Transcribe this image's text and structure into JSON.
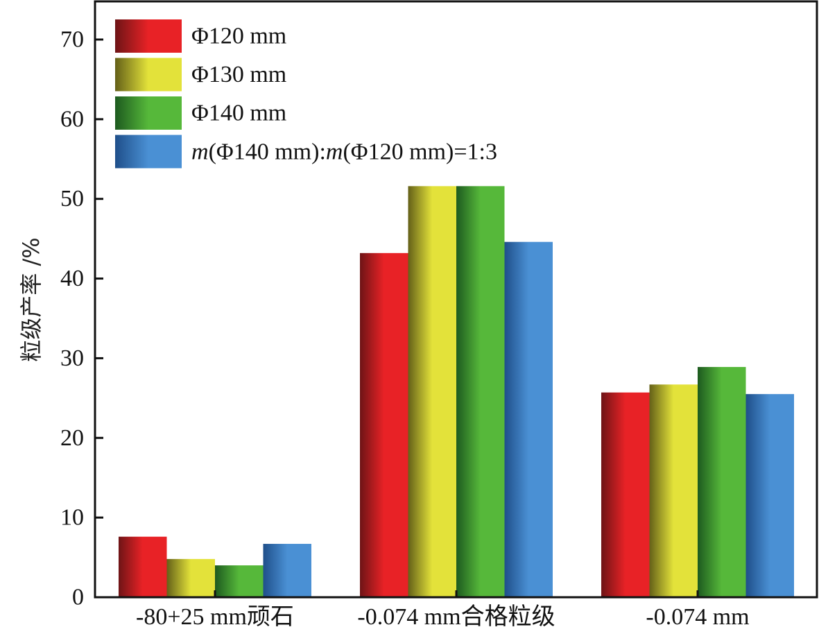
{
  "chart_data": {
    "type": "bar",
    "title": "",
    "xlabel": "",
    "ylabel": "粒级产率 /%",
    "ylim": [
      0,
      75
    ],
    "yticks": [
      0,
      10,
      20,
      30,
      40,
      50,
      60,
      70
    ],
    "categories": [
      "-80+25 mm顽石",
      "-0.074 mm合格粒级",
      "-0.074 mm"
    ],
    "series": [
      {
        "name": "Φ120 mm",
        "color_dark": "#6e1416",
        "color_light": "#e82226",
        "values": [
          7.6,
          43.2,
          25.7
        ]
      },
      {
        "name": "Φ130 mm",
        "color_dark": "#646018",
        "color_light": "#e3e23a",
        "values": [
          4.8,
          51.6,
          26.7
        ]
      },
      {
        "name": "Φ140 mm",
        "color_dark": "#1d5a1f",
        "color_light": "#56b83a",
        "values": [
          4.0,
          51.6,
          28.9
        ]
      },
      {
        "name": "m(Φ140 mm):m(Φ120 mm)=1:3",
        "name_parts": [
          "m",
          "(Φ140 mm):",
          "m",
          "(Φ120 mm)=1:3"
        ],
        "color_dark": "#1f4f8a",
        "color_light": "#4a90d4",
        "values": [
          6.7,
          44.6,
          25.5
        ]
      }
    ],
    "legend": "top-left",
    "grid": false
  }
}
